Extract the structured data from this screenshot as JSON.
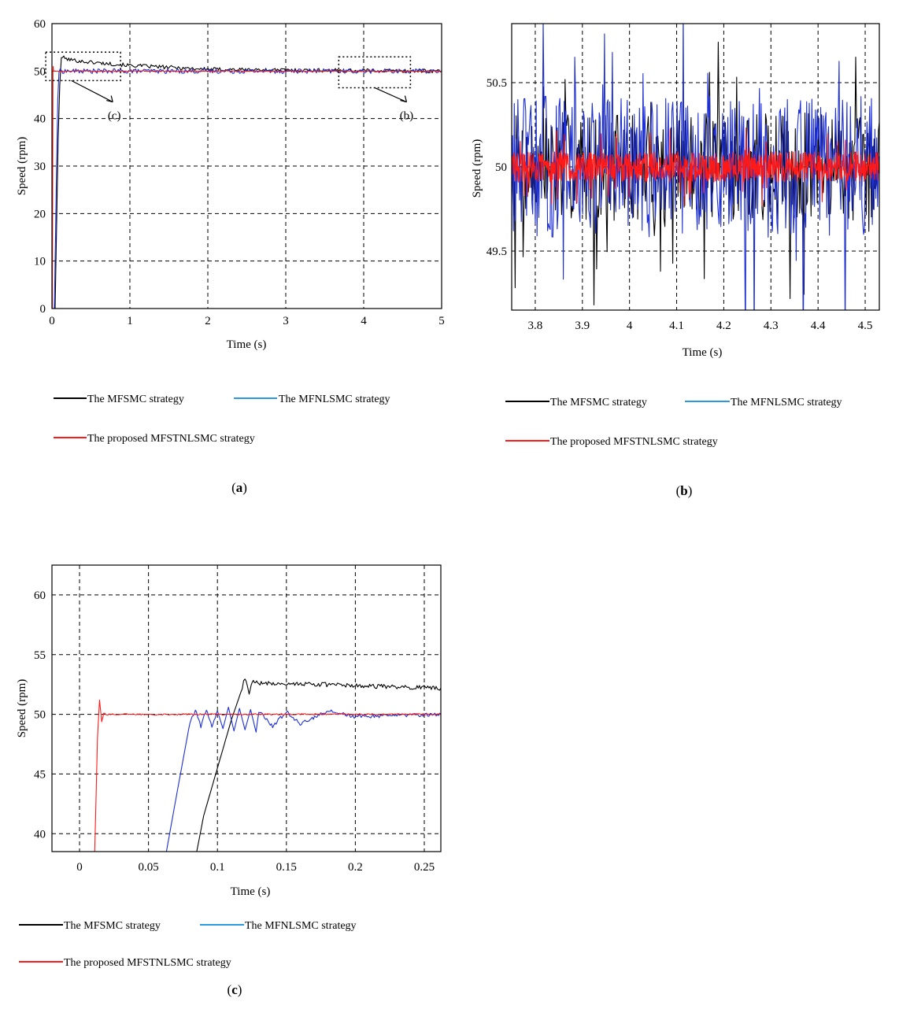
{
  "colors": {
    "mfsmc": "#000000",
    "mfnlsmc": "#1d2fd6",
    "proposed": "#ff1a1a",
    "legend_mfnlsmc": "#2a9ae0"
  },
  "chart_data": [
    {
      "id": "a",
      "type": "line",
      "caption_label": "a",
      "xlabel": "Time (s)",
      "ylabel": "Speed (rpm)",
      "xlim": [
        0,
        5
      ],
      "ylim": [
        0,
        60
      ],
      "xticks": [
        0,
        1,
        2,
        3,
        4,
        5
      ],
      "yticks": [
        0,
        10,
        20,
        30,
        40,
        50,
        60
      ],
      "xtick_labels": [
        "0",
        "1",
        "2",
        "3",
        "4",
        "5"
      ],
      "ytick_labels": [
        "0",
        "10",
        "20",
        "30",
        "40",
        "50",
        "60"
      ],
      "grid": true,
      "annotations": [
        {
          "text": "(c)",
          "box": {
            "x": [
              -0.08,
              0.88
            ],
            "y": [
              48.0,
              54.0
            ]
          },
          "arrow_to": [
            0.78,
            43.5
          ]
        },
        {
          "text": "(b)",
          "box": {
            "x": [
              3.68,
              4.6
            ],
            "y": [
              46.5,
              53.0
            ]
          },
          "arrow_to": [
            4.55,
            43.5
          ]
        }
      ],
      "series": [
        {
          "name": "The MFSMC strategy",
          "color_key": "mfsmc",
          "x": [
            0,
            0.04,
            0.08,
            0.1,
            0.12,
            0.2,
            0.4,
            0.7,
            1.0,
            1.5,
            2.0,
            3.0,
            4.0,
            5.0
          ],
          "y": [
            0,
            0,
            36,
            47,
            53,
            52.5,
            52.0,
            51.6,
            51.2,
            50.8,
            50.4,
            50.2,
            50.1,
            50.0
          ],
          "noise": 0.4
        },
        {
          "name": "The MFNLSMC strategy",
          "color_key": "mfnlsmc",
          "x": [
            0,
            0.03,
            0.06,
            0.075,
            0.09,
            0.2,
            1.0,
            5.0
          ],
          "y": [
            0,
            0,
            30,
            44,
            50,
            50,
            50,
            50
          ],
          "noise": 0.5
        },
        {
          "name": "The proposed MFSTNLSMC strategy",
          "color_key": "proposed",
          "x": [
            0,
            0.005,
            0.013,
            0.016,
            0.02,
            5.0
          ],
          "y": [
            0,
            0,
            50,
            51,
            50,
            50
          ],
          "noise": 0.1
        }
      ]
    },
    {
      "id": "b",
      "type": "line",
      "caption_label": "b",
      "xlabel": "Time (s)",
      "ylabel": "Speed (rpm)",
      "xlim": [
        3.75,
        4.53
      ],
      "ylim": [
        49.15,
        50.85
      ],
      "xticks": [
        3.8,
        3.9,
        4.0,
        4.1,
        4.2,
        4.3,
        4.4,
        4.5
      ],
      "yticks": [
        49.5,
        50,
        50.5
      ],
      "xtick_labels": [
        "3.8",
        "3.9",
        "4",
        "4.1",
        "4.2",
        "4.3",
        "4.4",
        "4.5"
      ],
      "ytick_labels": [
        "49.5",
        "50",
        "50.5"
      ],
      "grid": true,
      "series": [
        {
          "name": "The MFSMC strategy",
          "color_key": "mfsmc",
          "mean": 50.0,
          "amp": 0.32,
          "seed": 7,
          "points": 420
        },
        {
          "name": "The MFNLSMC strategy",
          "color_key": "mfnlsmc",
          "mean": 50.0,
          "amp": 0.42,
          "seed": 13,
          "points": 420
        },
        {
          "name": "The proposed MFSTNLSMC strategy",
          "color_key": "proposed",
          "mean": 50.0,
          "amp": 0.09,
          "seed": 29,
          "points": 900
        }
      ]
    },
    {
      "id": "c",
      "type": "line",
      "caption_label": "c",
      "xlabel": "Time (s)",
      "ylabel": "Speed (rpm)",
      "xlim": [
        -0.02,
        0.262
      ],
      "ylim": [
        38.5,
        62.5
      ],
      "xticks": [
        0,
        0.05,
        0.1,
        0.15,
        0.2,
        0.25
      ],
      "yticks": [
        40,
        45,
        50,
        55,
        60
      ],
      "xtick_labels": [
        "0",
        "0.05",
        "0.1",
        "0.15",
        "0.2",
        "0.25"
      ],
      "ytick_labels": [
        "40",
        "45",
        "50",
        "55",
        "60"
      ],
      "grid": true,
      "series": [
        {
          "name": "The MFSMC strategy",
          "color_key": "mfsmc",
          "x": [
            0.085,
            0.09,
            0.1,
            0.11,
            0.118,
            0.12,
            0.123,
            0.126,
            0.13,
            0.15,
            0.2,
            0.262
          ],
          "y": [
            38.5,
            41.5,
            45.5,
            49.5,
            52.2,
            53.1,
            51.7,
            52.9,
            52.6,
            52.6,
            52.4,
            52.2
          ],
          "noise": 0.18
        },
        {
          "name": "The MFNLSMC strategy",
          "color_key": "mfnlsmc",
          "x": [
            0.063,
            0.07,
            0.08,
            0.084,
            0.088,
            0.092,
            0.096,
            0.1,
            0.104,
            0.108,
            0.112,
            0.116,
            0.12,
            0.124,
            0.128,
            0.13,
            0.14,
            0.15,
            0.16,
            0.18,
            0.2,
            0.262
          ],
          "y": [
            38.5,
            43.0,
            49.3,
            50.4,
            49.0,
            50.4,
            49.0,
            50.3,
            48.8,
            50.6,
            48.6,
            50.5,
            48.7,
            50.4,
            48.5,
            50.3,
            49.0,
            50.2,
            49.2,
            50.3,
            49.8,
            50.0
          ],
          "noise": 0.15
        },
        {
          "name": "The proposed MFSTNLSMC strategy",
          "color_key": "proposed",
          "x": [
            0.011,
            0.013,
            0.0145,
            0.016,
            0.0175,
            0.019,
            0.262
          ],
          "y": [
            38.5,
            48.0,
            51.2,
            49.4,
            50.1,
            50.0,
            50.0
          ],
          "noise": 0.06
        }
      ]
    }
  ],
  "legends": {
    "mfsmc": "The MFSMC strategy",
    "mfnlsmc": "The MFNLSMC strategy",
    "proposed": "The proposed MFSTNLSMC strategy"
  },
  "captions": {
    "a": "a",
    "b": "b",
    "c": "c"
  },
  "annotation_labels": {
    "c": "(c)",
    "b": "(b)"
  }
}
